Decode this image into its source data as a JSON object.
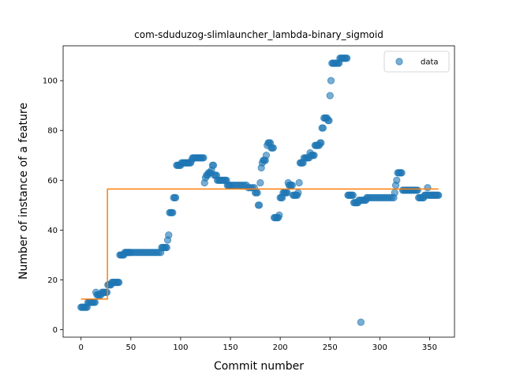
{
  "chart_data": {
    "type": "scatter",
    "title": "com-sduduzog-slimlauncher_lambda-binary_sigmoid",
    "xlabel": "Commit number",
    "ylabel": "Number of instance of a feature",
    "xlim": [
      -18,
      375
    ],
    "ylim": [
      -3,
      114
    ],
    "xticks": [
      0,
      50,
      100,
      150,
      200,
      250,
      300,
      350
    ],
    "yticks": [
      0,
      20,
      40,
      60,
      80,
      100
    ],
    "legend": {
      "placement": "top-right",
      "entries": [
        "data"
      ]
    },
    "colors": {
      "scatter": "#1f77b4",
      "fit": "#ff7f0e"
    },
    "series": [
      {
        "name": "data",
        "kind": "scatter",
        "points": [
          [
            0,
            9
          ],
          [
            1,
            9
          ],
          [
            2,
            9
          ],
          [
            3,
            9
          ],
          [
            4,
            9
          ],
          [
            5,
            9
          ],
          [
            6,
            9
          ],
          [
            7,
            11
          ],
          [
            8,
            11
          ],
          [
            9,
            11
          ],
          [
            10,
            11
          ],
          [
            11,
            11
          ],
          [
            12,
            11
          ],
          [
            13,
            11
          ],
          [
            14,
            11
          ],
          [
            15,
            15
          ],
          [
            16,
            14
          ],
          [
            17,
            14
          ],
          [
            18,
            14
          ],
          [
            19,
            14
          ],
          [
            20,
            14
          ],
          [
            21,
            15
          ],
          [
            22,
            15
          ],
          [
            23,
            15
          ],
          [
            24,
            15
          ],
          [
            25,
            15
          ],
          [
            26,
            15
          ],
          [
            27,
            18
          ],
          [
            28,
            18
          ],
          [
            29,
            18
          ],
          [
            30,
            18
          ],
          [
            31,
            19
          ],
          [
            32,
            19
          ],
          [
            33,
            19
          ],
          [
            34,
            19
          ],
          [
            35,
            19
          ],
          [
            36,
            19
          ],
          [
            37,
            19
          ],
          [
            38,
            19
          ],
          [
            39,
            30
          ],
          [
            40,
            30
          ],
          [
            41,
            30
          ],
          [
            42,
            30
          ],
          [
            43,
            30
          ],
          [
            44,
            31
          ],
          [
            45,
            31
          ],
          [
            46,
            31
          ],
          [
            47,
            31
          ],
          [
            48,
            31
          ],
          [
            49,
            31
          ],
          [
            50,
            31
          ],
          [
            52,
            31
          ],
          [
            54,
            31
          ],
          [
            56,
            31
          ],
          [
            58,
            31
          ],
          [
            60,
            31
          ],
          [
            62,
            31
          ],
          [
            64,
            31
          ],
          [
            66,
            31
          ],
          [
            68,
            31
          ],
          [
            70,
            31
          ],
          [
            72,
            31
          ],
          [
            74,
            31
          ],
          [
            76,
            31
          ],
          [
            78,
            31
          ],
          [
            80,
            31
          ],
          [
            81,
            33
          ],
          [
            82,
            33
          ],
          [
            83,
            33
          ],
          [
            84,
            33
          ],
          [
            85,
            33
          ],
          [
            86,
            33
          ],
          [
            87,
            36
          ],
          [
            88,
            38
          ],
          [
            89,
            47
          ],
          [
            90,
            47
          ],
          [
            91,
            47
          ],
          [
            92,
            47
          ],
          [
            93,
            53
          ],
          [
            94,
            53
          ],
          [
            95,
            53
          ],
          [
            96,
            66
          ],
          [
            97,
            66
          ],
          [
            98,
            66
          ],
          [
            99,
            66
          ],
          [
            100,
            66
          ],
          [
            101,
            67
          ],
          [
            102,
            67
          ],
          [
            103,
            67
          ],
          [
            104,
            67
          ],
          [
            105,
            67
          ],
          [
            106,
            67
          ],
          [
            107,
            67
          ],
          [
            108,
            67
          ],
          [
            109,
            67
          ],
          [
            110,
            67
          ],
          [
            111,
            68
          ],
          [
            112,
            69
          ],
          [
            113,
            69
          ],
          [
            114,
            69
          ],
          [
            115,
            69
          ],
          [
            116,
            69
          ],
          [
            117,
            69
          ],
          [
            118,
            69
          ],
          [
            119,
            69
          ],
          [
            120,
            69
          ],
          [
            121,
            69
          ],
          [
            122,
            69
          ],
          [
            123,
            69
          ],
          [
            124,
            59
          ],
          [
            125,
            61
          ],
          [
            126,
            62
          ],
          [
            127,
            62
          ],
          [
            128,
            63
          ],
          [
            129,
            63
          ],
          [
            130,
            63
          ],
          [
            131,
            64
          ],
          [
            132,
            66
          ],
          [
            133,
            66
          ],
          [
            134,
            62
          ],
          [
            135,
            62
          ],
          [
            136,
            62
          ],
          [
            137,
            60
          ],
          [
            138,
            60
          ],
          [
            139,
            60
          ],
          [
            140,
            60
          ],
          [
            141,
            60
          ],
          [
            142,
            60
          ],
          [
            143,
            60
          ],
          [
            144,
            60
          ],
          [
            145,
            60
          ],
          [
            146,
            60
          ],
          [
            147,
            58
          ],
          [
            148,
            58
          ],
          [
            149,
            58
          ],
          [
            150,
            58
          ],
          [
            152,
            58
          ],
          [
            154,
            58
          ],
          [
            156,
            58
          ],
          [
            158,
            58
          ],
          [
            160,
            58
          ],
          [
            162,
            58
          ],
          [
            164,
            58
          ],
          [
            166,
            58
          ],
          [
            168,
            57
          ],
          [
            170,
            57
          ],
          [
            172,
            57
          ],
          [
            174,
            57
          ],
          [
            175,
            55
          ],
          [
            176,
            55
          ],
          [
            177,
            55
          ],
          [
            178,
            50
          ],
          [
            179,
            50
          ],
          [
            180,
            59
          ],
          [
            181,
            65
          ],
          [
            182,
            67
          ],
          [
            183,
            68
          ],
          [
            184,
            68
          ],
          [
            185,
            68
          ],
          [
            186,
            70
          ],
          [
            187,
            74
          ],
          [
            188,
            75
          ],
          [
            189,
            75
          ],
          [
            190,
            75
          ],
          [
            191,
            73
          ],
          [
            192,
            73
          ],
          [
            193,
            73
          ],
          [
            194,
            45
          ],
          [
            195,
            45
          ],
          [
            196,
            45
          ],
          [
            197,
            45
          ],
          [
            198,
            45
          ],
          [
            199,
            46
          ],
          [
            200,
            53
          ],
          [
            201,
            53
          ],
          [
            202,
            53
          ],
          [
            203,
            55
          ],
          [
            204,
            55
          ],
          [
            205,
            55
          ],
          [
            206,
            55
          ],
          [
            207,
            55
          ],
          [
            208,
            59
          ],
          [
            209,
            58
          ],
          [
            210,
            58
          ],
          [
            211,
            58
          ],
          [
            212,
            58
          ],
          [
            213,
            54
          ],
          [
            214,
            54
          ],
          [
            215,
            54
          ],
          [
            216,
            54
          ],
          [
            217,
            54
          ],
          [
            218,
            55
          ],
          [
            219,
            59
          ],
          [
            220,
            67
          ],
          [
            221,
            67
          ],
          [
            222,
            67
          ],
          [
            223,
            67
          ],
          [
            224,
            69
          ],
          [
            225,
            69
          ],
          [
            226,
            69
          ],
          [
            227,
            69
          ],
          [
            228,
            69
          ],
          [
            229,
            69
          ],
          [
            230,
            71
          ],
          [
            231,
            70
          ],
          [
            232,
            70
          ],
          [
            233,
            70
          ],
          [
            234,
            70
          ],
          [
            235,
            74
          ],
          [
            236,
            74
          ],
          [
            237,
            74
          ],
          [
            238,
            74
          ],
          [
            239,
            74
          ],
          [
            240,
            75
          ],
          [
            241,
            75
          ],
          [
            242,
            81
          ],
          [
            243,
            81
          ],
          [
            244,
            85
          ],
          [
            245,
            85
          ],
          [
            246,
            85
          ],
          [
            247,
            85
          ],
          [
            248,
            84
          ],
          [
            249,
            84
          ],
          [
            250,
            94
          ],
          [
            251,
            100
          ],
          [
            252,
            107
          ],
          [
            253,
            107
          ],
          [
            254,
            107
          ],
          [
            255,
            107
          ],
          [
            256,
            107
          ],
          [
            257,
            107
          ],
          [
            258,
            107
          ],
          [
            259,
            107
          ],
          [
            260,
            109
          ],
          [
            261,
            109
          ],
          [
            262,
            109
          ],
          [
            263,
            109
          ],
          [
            264,
            109
          ],
          [
            265,
            109
          ],
          [
            266,
            109
          ],
          [
            267,
            109
          ],
          [
            268,
            54
          ],
          [
            269,
            54
          ],
          [
            270,
            54
          ],
          [
            271,
            54
          ],
          [
            272,
            54
          ],
          [
            273,
            54
          ],
          [
            274,
            51
          ],
          [
            275,
            51
          ],
          [
            276,
            51
          ],
          [
            277,
            51
          ],
          [
            278,
            51
          ],
          [
            279,
            52
          ],
          [
            280,
            52
          ],
          [
            281,
            3
          ],
          [
            282,
            52
          ],
          [
            283,
            52
          ],
          [
            284,
            52
          ],
          [
            285,
            52
          ],
          [
            286,
            52
          ],
          [
            287,
            53
          ],
          [
            288,
            53
          ],
          [
            290,
            53
          ],
          [
            292,
            53
          ],
          [
            294,
            53
          ],
          [
            296,
            53
          ],
          [
            298,
            53
          ],
          [
            300,
            53
          ],
          [
            302,
            53
          ],
          [
            304,
            53
          ],
          [
            306,
            53
          ],
          [
            308,
            53
          ],
          [
            310,
            53
          ],
          [
            312,
            53
          ],
          [
            314,
            53
          ],
          [
            315,
            55
          ],
          [
            316,
            58
          ],
          [
            317,
            60
          ],
          [
            318,
            63
          ],
          [
            319,
            63
          ],
          [
            320,
            63
          ],
          [
            321,
            63
          ],
          [
            322,
            63
          ],
          [
            323,
            56
          ],
          [
            324,
            56
          ],
          [
            325,
            56
          ],
          [
            326,
            56
          ],
          [
            327,
            56
          ],
          [
            328,
            56
          ],
          [
            329,
            56
          ],
          [
            330,
            56
          ],
          [
            331,
            56
          ],
          [
            332,
            56
          ],
          [
            333,
            56
          ],
          [
            334,
            56
          ],
          [
            335,
            56
          ],
          [
            336,
            56
          ],
          [
            337,
            56
          ],
          [
            338,
            56
          ],
          [
            339,
            53
          ],
          [
            340,
            53
          ],
          [
            341,
            53
          ],
          [
            342,
            53
          ],
          [
            343,
            53
          ],
          [
            344,
            53
          ],
          [
            345,
            54
          ],
          [
            346,
            54
          ],
          [
            347,
            54
          ],
          [
            348,
            57
          ],
          [
            349,
            54
          ],
          [
            350,
            54
          ],
          [
            351,
            54
          ],
          [
            352,
            54
          ],
          [
            353,
            54
          ],
          [
            354,
            54
          ],
          [
            355,
            54
          ],
          [
            356,
            54
          ],
          [
            357,
            54
          ],
          [
            358,
            54
          ],
          [
            359,
            54
          ]
        ]
      },
      {
        "name": "",
        "kind": "line",
        "points": [
          [
            0,
            12.3
          ],
          [
            26.5,
            12.3
          ],
          [
            26.5,
            56.5
          ],
          [
            359,
            56.5
          ]
        ]
      }
    ]
  }
}
